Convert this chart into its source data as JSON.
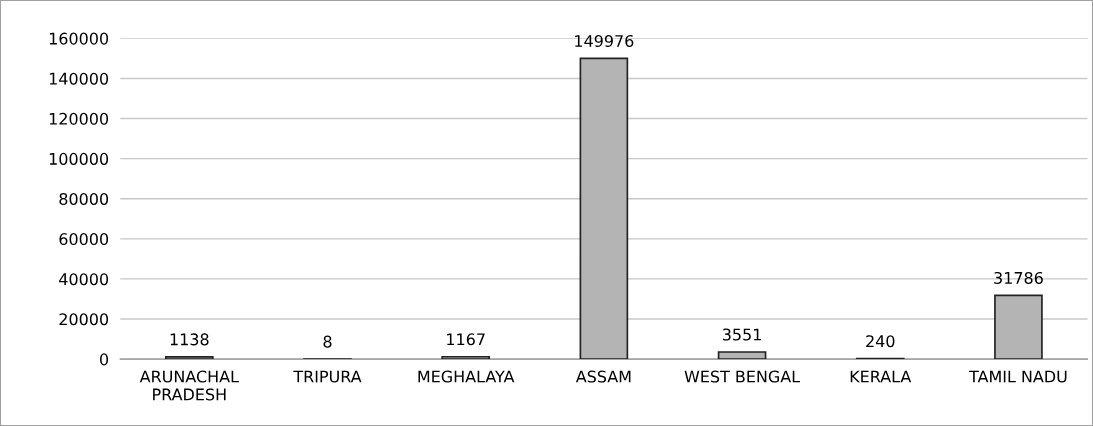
{
  "chart_data": {
    "type": "bar",
    "categories": [
      "ARUNACHAL\nPRADESH",
      "TRIPURA",
      "MEGHALAYA",
      "ASSAM",
      "WEST BENGAL",
      "KERALA",
      "TAMIL NADU"
    ],
    "values": [
      1138,
      8,
      1167,
      149976,
      3551,
      240,
      31786
    ],
    "color": "#b4b4b4",
    "ylim": [
      0,
      160000
    ],
    "yticks": [
      0,
      20000,
      40000,
      60000,
      80000,
      100000,
      120000,
      140000,
      160000
    ],
    "grid": "y",
    "data_labels": true
  }
}
